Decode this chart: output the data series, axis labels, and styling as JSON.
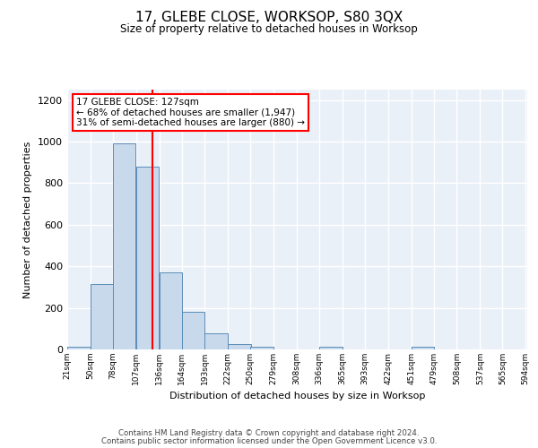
{
  "title": "17, GLEBE CLOSE, WORKSOP, S80 3QX",
  "subtitle": "Size of property relative to detached houses in Worksop",
  "xlabel": "Distribution of detached houses by size in Worksop",
  "ylabel": "Number of detached properties",
  "bar_color": "#c9d9ec",
  "bar_edge_color": "#5b8db8",
  "background_color": "#eaf0f8",
  "grid_color": "#ffffff",
  "red_line_x": 127,
  "annotation_line1": "17 GLEBE CLOSE: 127sqm",
  "annotation_line2": "← 68% of detached houses are smaller (1,947)",
  "annotation_line3": "31% of semi-detached houses are larger (880) →",
  "footer_line1": "Contains HM Land Registry data © Crown copyright and database right 2024.",
  "footer_line2": "Contains public sector information licensed under the Open Government Licence v3.0.",
  "bins_start": [
    21,
    50,
    78,
    107,
    136,
    164,
    193,
    222,
    250,
    279,
    308,
    336,
    365,
    393,
    422,
    451,
    479,
    508,
    537,
    565
  ],
  "bin_width": 29,
  "bar_heights": [
    14,
    315,
    990,
    880,
    370,
    180,
    78,
    25,
    14,
    0,
    0,
    14,
    0,
    0,
    0,
    14,
    0,
    0,
    0,
    0
  ],
  "ylim": [
    0,
    1250
  ],
  "yticks": [
    0,
    200,
    400,
    600,
    800,
    1000,
    1200
  ],
  "tick_labels": [
    "21sqm",
    "50sqm",
    "78sqm",
    "107sqm",
    "136sqm",
    "164sqm",
    "193sqm",
    "222sqm",
    "250sqm",
    "279sqm",
    "308sqm",
    "336sqm",
    "365sqm",
    "393sqm",
    "422sqm",
    "451sqm",
    "479sqm",
    "508sqm",
    "537sqm",
    "565sqm",
    "594sqm"
  ]
}
